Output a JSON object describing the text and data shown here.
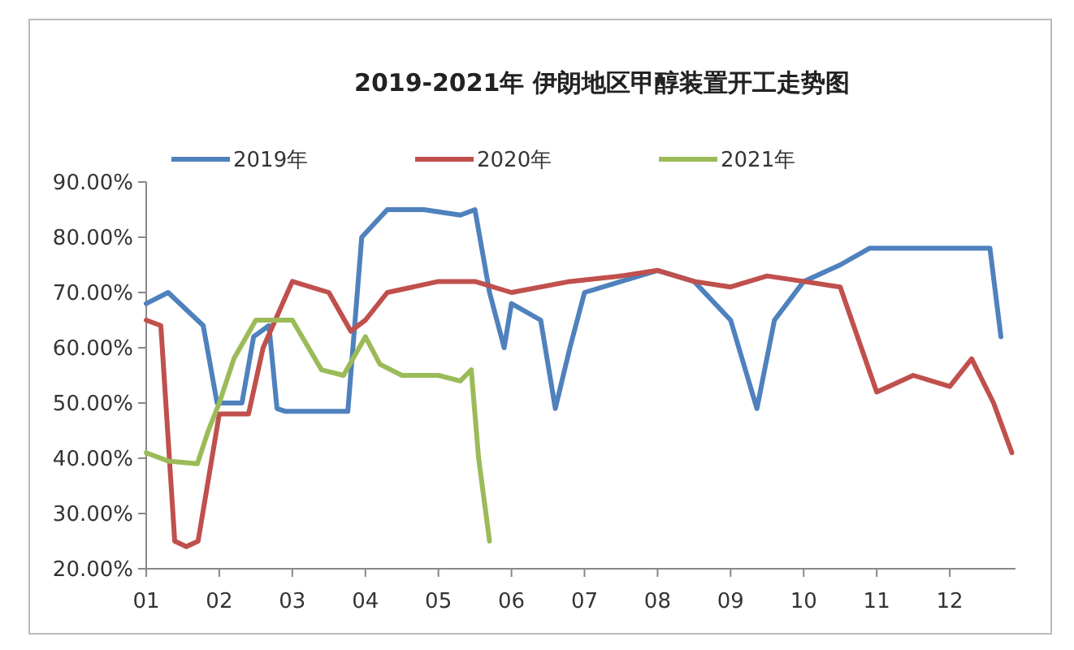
{
  "chart_data": {
    "type": "line",
    "title": "2019-2021年 伊朗地区甲醇装置开工走势图",
    "legend": "top",
    "grid": false,
    "marker": "none",
    "line_style": "solid",
    "xlim": [
      1,
      12.9
    ],
    "xticks": [
      {
        "value": 1,
        "label": "01"
      },
      {
        "value": 2,
        "label": "02"
      },
      {
        "value": 3,
        "label": "03"
      },
      {
        "value": 4,
        "label": "04"
      },
      {
        "value": 5,
        "label": "05"
      },
      {
        "value": 6,
        "label": "06"
      },
      {
        "value": 7,
        "label": "07"
      },
      {
        "value": 8,
        "label": "08"
      },
      {
        "value": 9,
        "label": "09"
      },
      {
        "value": 10,
        "label": "10"
      },
      {
        "value": 11,
        "label": "11"
      },
      {
        "value": 12,
        "label": "12"
      }
    ],
    "ylim": [
      20,
      90
    ],
    "yticks": [
      {
        "value": 20,
        "label": "20.00%"
      },
      {
        "value": 30,
        "label": "30.00%"
      },
      {
        "value": 40,
        "label": "40.00%"
      },
      {
        "value": 50,
        "label": "50.00%"
      },
      {
        "value": 60,
        "label": "60.00%"
      },
      {
        "value": 70,
        "label": "70.00%"
      },
      {
        "value": 80,
        "label": "80.00%"
      },
      {
        "value": 90,
        "label": "90.00%"
      }
    ],
    "series": [
      {
        "name": "2019年",
        "color": "#4f81bd",
        "x": [
          1,
          1.3,
          1.78,
          1.97,
          2.31,
          2.47,
          2.68,
          2.79,
          2.9,
          3.3,
          3.76,
          3.95,
          4.3,
          4.8,
          5.3,
          5.5,
          5.7,
          5.9,
          6.0,
          6.4,
          6.6,
          6.8,
          7.0,
          7.5,
          8.0,
          8.5,
          9.0,
          9.36,
          9.6,
          10.0,
          10.5,
          10.9,
          11.5,
          12.0,
          12.55,
          12.7
        ],
        "values": [
          68,
          70,
          64,
          50,
          50,
          62,
          64,
          49,
          48.5,
          48.5,
          48.5,
          80,
          85,
          85,
          84,
          85,
          70,
          60,
          68,
          65,
          49,
          60,
          70,
          72,
          74,
          72,
          65,
          49,
          65,
          72,
          75,
          78,
          78,
          78,
          78,
          62
        ]
      },
      {
        "name": "2020年",
        "color": "#c0504d",
        "x": [
          1,
          1.2,
          1.39,
          1.55,
          1.71,
          2.0,
          2.4,
          2.6,
          3.0,
          3.5,
          3.8,
          4.0,
          4.3,
          5.0,
          5.5,
          6.0,
          6.8,
          7.5,
          8.0,
          8.5,
          9.0,
          9.5,
          10.0,
          10.5,
          11.0,
          11.5,
          12.0,
          12.3,
          12.6,
          12.85
        ],
        "values": [
          65,
          64,
          25,
          24,
          25,
          48,
          48,
          60,
          72,
          70,
          63,
          65,
          70,
          72,
          72,
          70,
          72,
          73,
          74,
          72,
          71,
          73,
          72,
          71,
          52,
          55,
          53,
          58,
          50,
          41
        ]
      },
      {
        "name": "2021年",
        "color": "#9bbb59",
        "x": [
          1,
          1.3,
          1.7,
          1.85,
          2.0,
          2.2,
          2.5,
          3.0,
          3.4,
          3.7,
          4.0,
          4.2,
          4.5,
          5.0,
          5.3,
          5.45,
          5.55,
          5.7
        ],
        "values": [
          41,
          39.5,
          39,
          45,
          50,
          58,
          65,
          65,
          56,
          55,
          62,
          57,
          55,
          55,
          54,
          56,
          40,
          25
        ]
      }
    ]
  }
}
